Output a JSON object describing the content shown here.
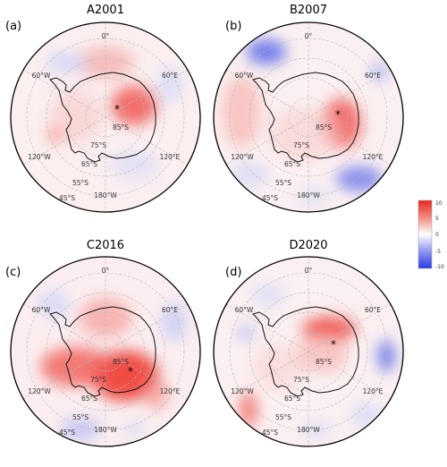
{
  "panels": [
    {
      "key": "a",
      "label": "(a)",
      "title": "A2001"
    },
    {
      "key": "b",
      "label": "(b)",
      "title": "B2007"
    },
    {
      "key": "c",
      "label": "(c)",
      "title": "C2016"
    },
    {
      "key": "d",
      "label": "(d)",
      "title": "D2020"
    }
  ],
  "axes": {
    "meridians": [
      "0°",
      "60°E",
      "120°E",
      "180°W",
      "120°W",
      "60°W"
    ],
    "parallels": [
      "85°S",
      "75°S",
      "65°S",
      "55°S",
      "45°S"
    ]
  },
  "colorbar": {
    "ticks": [
      "10",
      "5",
      "0",
      "-5",
      "-10"
    ],
    "max": 10,
    "min": -10,
    "colors": {
      "high": "#e8281e",
      "mid": "#ffffff",
      "low": "#2b3ce8"
    }
  },
  "marker": "*"
}
